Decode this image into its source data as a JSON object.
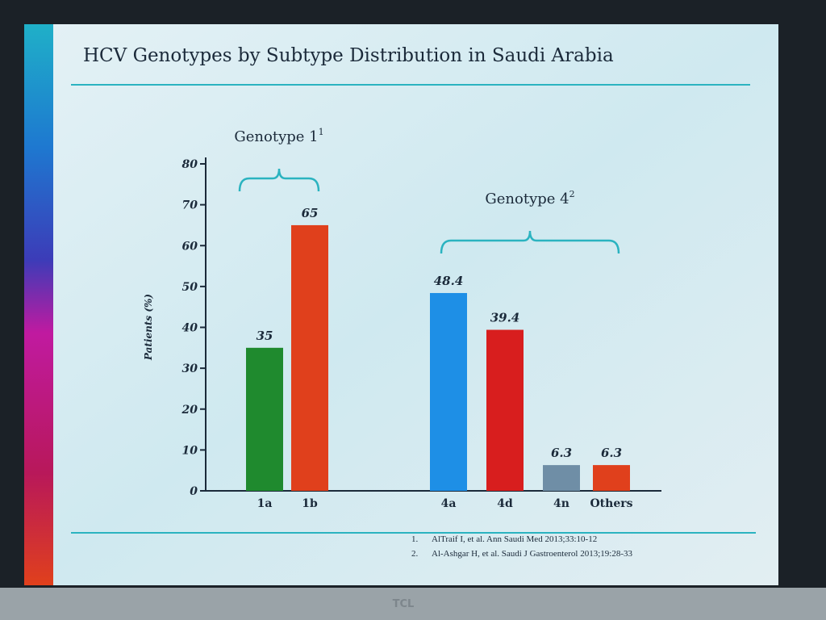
{
  "monitor_brand": "TCL",
  "chart_data": {
    "type": "bar",
    "title": "HCV Genotypes by Subtype Distribution in Saudi Arabia",
    "y_label": "Patients (%)",
    "categories": [
      "1a",
      "1b",
      "4a",
      "4d",
      "4n",
      "Others"
    ],
    "values": [
      35,
      65,
      48.4,
      39.4,
      6.3,
      6.3
    ],
    "colors": [
      "#1f8a2e",
      "#e0401c",
      "#1e8fe6",
      "#d81e1e",
      "#6f8ea6",
      "#e0401c"
    ],
    "ylim": [
      0,
      80
    ],
    "yticks": [
      0,
      10,
      20,
      30,
      40,
      50,
      60,
      70,
      80
    ],
    "groups": [
      {
        "label": "Genotype 1",
        "superscript": "1"
      },
      {
        "label": "Genotype 4",
        "superscript": "2"
      }
    ]
  },
  "references": [
    {
      "number": "1.",
      "text": "AlTraif I, et al. Ann Saudi Med 2013;33:10-12"
    },
    {
      "number": "2.",
      "text": "Al-Ashgar H, et al. Saudi J Gastroenterol 2013;19:28-33"
    }
  ]
}
